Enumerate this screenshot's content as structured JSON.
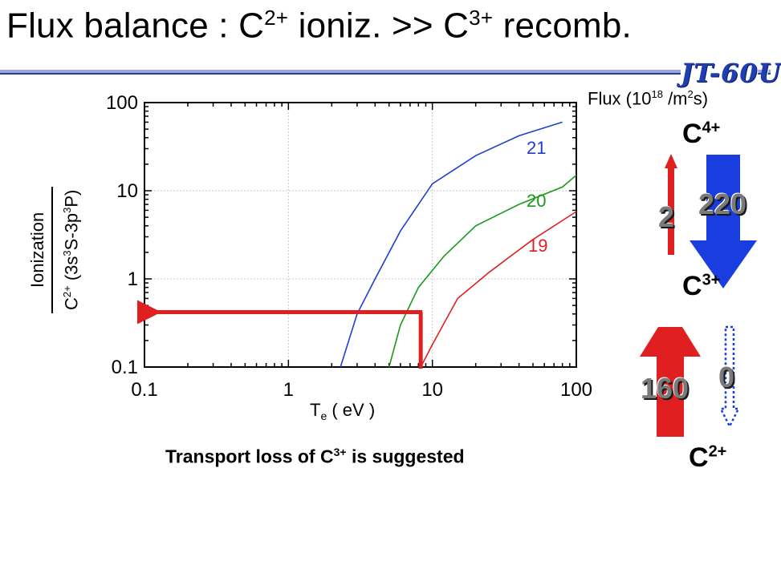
{
  "slide": {
    "title": {
      "prefix": "Flux balance : C",
      "sup1": "2+",
      "middle": " ioniz. >> C",
      "sup2": "3+",
      "suffix": " recomb."
    },
    "logo": "JT-60U",
    "accent_color": "#1f3fb0"
  },
  "chart_data": {
    "type": "line",
    "xlabel_main": "T",
    "xlabel_sub": "e",
    "xlabel_unit": " ( eV )",
    "ylabel_line1": "Ionization",
    "ylabel_line2": {
      "a": "C",
      "a_sup": "2+",
      "b": " (3s",
      "b_sup": "3",
      "c": "S-3p",
      "c_sup": "3",
      "d": "P)"
    },
    "xscale": "log",
    "yscale": "log",
    "xlim": [
      0.1,
      100
    ],
    "ylim": [
      0.1,
      100
    ],
    "x_ticks": [
      "0.1",
      "1",
      "10",
      "100"
    ],
    "y_ticks": [
      "0.1",
      "1",
      "10",
      "100"
    ],
    "grid": true,
    "series": [
      {
        "name": "21",
        "color": "#1f3fd0",
        "x": [
          2.3,
          3.0,
          4.0,
          6.0,
          10.0,
          20.0,
          40.0,
          80.0
        ],
        "y": [
          0.1,
          0.4,
          1.0,
          3.5,
          12.0,
          25.0,
          42.0,
          60.0
        ]
      },
      {
        "name": "20",
        "color": "#1a9a1a",
        "x": [
          5.0,
          6.0,
          8.0,
          12.0,
          20.0,
          40.0,
          80.0,
          100.0
        ],
        "y": [
          0.1,
          0.3,
          0.8,
          1.8,
          4.0,
          7.0,
          11.0,
          15.0
        ]
      },
      {
        "name": "19",
        "color": "#e02020",
        "x": [
          8.3,
          10.0,
          15.0,
          25.0,
          50.0,
          100.0
        ],
        "y": [
          0.1,
          0.18,
          0.6,
          1.2,
          2.8,
          5.8
        ]
      }
    ],
    "annotation": {
      "color": "#e02020",
      "x": 8.3,
      "y": 0.42
    },
    "footnote": {
      "prefix": "Transport loss of C",
      "sup": "3+",
      "suffix": " is suggested"
    }
  },
  "flux": {
    "unit": {
      "a": "Flux (10",
      "a_sup": "18",
      "b": " /m",
      "b_sup": "2",
      "c": "s)"
    },
    "ions": {
      "c4": {
        "base": "C",
        "sup": "4+"
      },
      "c3": {
        "base": "C",
        "sup": "3+"
      },
      "c2": {
        "base": "C",
        "sup": "2+"
      }
    },
    "c3_to_c4_ionization": {
      "value": "2",
      "color": "#e02020"
    },
    "c4_to_c3_recombination": {
      "value": "220",
      "color": "#1a3de0"
    },
    "c2_to_c3_ionization": {
      "value": "160",
      "color": "#e02020"
    },
    "c3_to_c2_recombination": {
      "value": "0",
      "color": "#1a3de0"
    }
  }
}
